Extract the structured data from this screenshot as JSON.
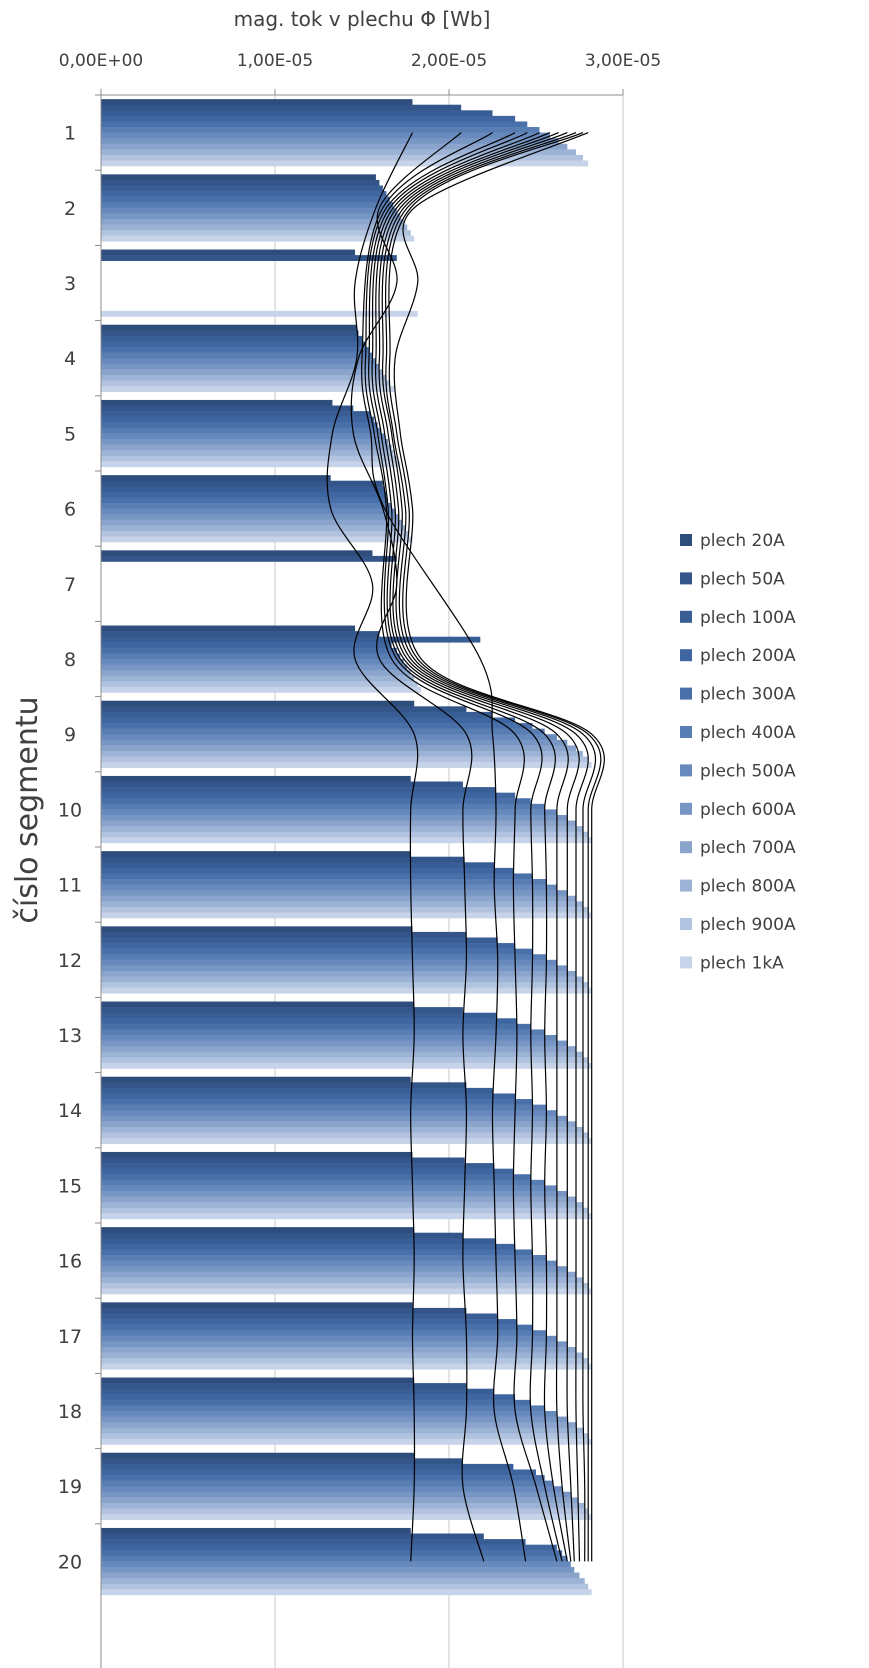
{
  "chart_data": {
    "type": "bar",
    "orientation": "horizontal",
    "title": "mag. tok v plechu  Φ [Wb]",
    "xlabel": "mag. tok v plechu  Φ [Wb]",
    "ylabel": "číslo segmentu",
    "xlim": [
      0,
      3e-05
    ],
    "x_axis_position": "top",
    "x_ticks": [
      0,
      1e-05,
      2e-05,
      3e-05
    ],
    "x_tick_labels": [
      "0,00E+00",
      "1,00E-05",
      "2,00E-05",
      "3,00E-05"
    ],
    "grid": "vertical major gridlines",
    "legend_position": "right",
    "categories": [
      "1",
      "2",
      "3",
      "4",
      "5",
      "6",
      "7",
      "8",
      "9",
      "10",
      "11",
      "12",
      "13",
      "14",
      "15",
      "16",
      "17",
      "18",
      "19",
      "20"
    ],
    "series": [
      {
        "name": "plech 20A",
        "color": "#2e4d7b",
        "values": [
          1.79e-05,
          1.58e-05,
          1.46e-05,
          1.47e-05,
          1.33e-05,
          1.32e-05,
          1.56e-05,
          1.46e-05,
          1.8e-05,
          1.78e-05,
          1.78e-05,
          1.79e-05,
          1.8e-05,
          1.78e-05,
          1.79e-05,
          1.8e-05,
          1.79e-05,
          1.8e-05,
          1.8e-05,
          1.78e-05
        ]
      },
      {
        "name": "plech 50A",
        "color": "#335589",
        "values": [
          2.07e-05,
          1.6e-05,
          1.7e-05,
          1.48e-05,
          1.45e-05,
          1.62e-05,
          1.7e-05,
          1.6e-05,
          2.1e-05,
          2.08e-05,
          2.09e-05,
          2.1e-05,
          2.08e-05,
          2.1e-05,
          2.09e-05,
          2.08e-05,
          2.1e-05,
          2.1e-05,
          2.08e-05,
          2.2e-05
        ]
      },
      {
        "name": "plech 100A",
        "color": "#395e95",
        "values": [
          2.25e-05,
          1.62e-05,
          null,
          1.5e-05,
          1.55e-05,
          1.63e-05,
          null,
          2.18e-05,
          2.25e-05,
          2.27e-05,
          2.26e-05,
          2.28e-05,
          2.27e-05,
          2.25e-05,
          2.26e-05,
          2.27e-05,
          2.28e-05,
          2.26e-05,
          2.37e-05,
          2.44e-05
        ]
      },
      {
        "name": "plech 200A",
        "color": "#3f66a0",
        "values": [
          2.38e-05,
          1.64e-05,
          null,
          1.52e-05,
          1.57e-05,
          1.64e-05,
          null,
          1.67e-05,
          2.38e-05,
          2.38e-05,
          2.37e-05,
          2.38e-05,
          2.39e-05,
          2.38e-05,
          2.37e-05,
          2.38e-05,
          2.39e-05,
          2.38e-05,
          2.5e-05,
          2.62e-05
        ]
      },
      {
        "name": "plech 300A",
        "color": "#4a70aa",
        "values": [
          2.45e-05,
          1.66e-05,
          null,
          1.54e-05,
          1.59e-05,
          1.65e-05,
          null,
          1.7e-05,
          2.48e-05,
          2.47e-05,
          2.48e-05,
          2.48e-05,
          2.47e-05,
          2.48e-05,
          2.47e-05,
          2.48e-05,
          2.48e-05,
          2.47e-05,
          2.55e-05,
          2.65e-05
        ]
      },
      {
        "name": "plech 400A",
        "color": "#587db3",
        "values": [
          2.52e-05,
          1.68e-05,
          null,
          1.56e-05,
          1.61e-05,
          1.67e-05,
          null,
          1.72e-05,
          2.55e-05,
          2.55e-05,
          2.56e-05,
          2.56e-05,
          2.55e-05,
          2.56e-05,
          2.55e-05,
          2.56e-05,
          2.56e-05,
          2.55e-05,
          2.6e-05,
          2.68e-05
        ]
      },
      {
        "name": "plech 500A",
        "color": "#6789bc",
        "values": [
          2.58e-05,
          1.7e-05,
          null,
          1.58e-05,
          1.63e-05,
          1.69e-05,
          null,
          1.74e-05,
          2.62e-05,
          2.62e-05,
          2.62e-05,
          2.62e-05,
          2.62e-05,
          2.62e-05,
          2.62e-05,
          2.62e-05,
          2.62e-05,
          2.62e-05,
          2.65e-05,
          2.7e-05
        ]
      },
      {
        "name": "plech 600A",
        "color": "#7896c4",
        "values": [
          2.63e-05,
          1.72e-05,
          null,
          1.6e-05,
          1.65e-05,
          1.71e-05,
          null,
          1.76e-05,
          2.68e-05,
          2.68e-05,
          2.68e-05,
          2.68e-05,
          2.68e-05,
          2.68e-05,
          2.68e-05,
          2.68e-05,
          2.68e-05,
          2.68e-05,
          2.7e-05,
          2.72e-05
        ]
      },
      {
        "name": "plech 700A",
        "color": "#8aa4cc",
        "values": [
          2.68e-05,
          1.74e-05,
          null,
          1.62e-05,
          1.67e-05,
          1.73e-05,
          null,
          1.78e-05,
          2.73e-05,
          2.73e-05,
          2.73e-05,
          2.73e-05,
          2.73e-05,
          2.73e-05,
          2.73e-05,
          2.73e-05,
          2.73e-05,
          2.73e-05,
          2.74e-05,
          2.75e-05
        ]
      },
      {
        "name": "plech 800A",
        "color": "#9db3d5",
        "values": [
          2.73e-05,
          1.76e-05,
          null,
          1.64e-05,
          1.68e-05,
          1.75e-05,
          null,
          1.8e-05,
          2.77e-05,
          2.77e-05,
          2.77e-05,
          2.77e-05,
          2.77e-05,
          2.77e-05,
          2.77e-05,
          2.77e-05,
          2.77e-05,
          2.77e-05,
          2.78e-05,
          2.78e-05
        ]
      },
      {
        "name": "plech 900A",
        "color": "#b1c3de",
        "values": [
          2.77e-05,
          1.78e-05,
          null,
          1.66e-05,
          1.7e-05,
          1.77e-05,
          null,
          1.82e-05,
          2.8e-05,
          2.8e-05,
          2.8e-05,
          2.8e-05,
          2.8e-05,
          2.8e-05,
          2.8e-05,
          2.8e-05,
          2.8e-05,
          2.8e-05,
          2.8e-05,
          2.8e-05
        ]
      },
      {
        "name": "plech 1kA",
        "color": "#c6d3e8",
        "values": [
          2.8e-05,
          1.8e-05,
          1.82e-05,
          1.69e-05,
          1.72e-05,
          1.79e-05,
          null,
          1.84e-05,
          2.82e-05,
          2.82e-05,
          2.82e-05,
          2.82e-05,
          2.82e-05,
          2.82e-05,
          2.82e-05,
          2.82e-05,
          2.82e-05,
          2.82e-05,
          2.82e-05,
          2.82e-05
        ]
      }
    ],
    "curves_color": "#000000"
  }
}
